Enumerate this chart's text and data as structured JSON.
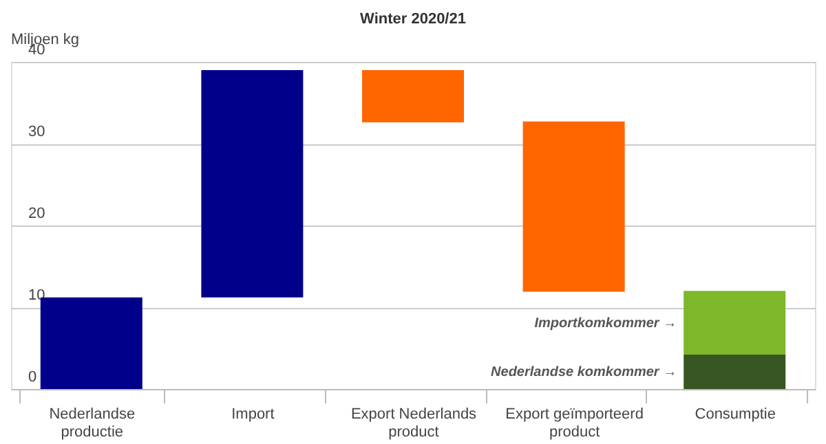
{
  "chart_data": {
    "type": "bar",
    "title": "Winter 2020/21",
    "ylabel": "Miljoen kg",
    "categories": [
      "Nederlandse productie",
      "Import",
      "Export Nederlands product",
      "Export geïmporteerd product",
      "Consumptie"
    ],
    "series": [
      {
        "colors": [
          "#00008b",
          "#00008b",
          "#ff6600",
          "#ff6600",
          "#375623"
        ],
        "values": [
          11.2,
          27.8,
          6.4,
          20.8,
          4.2
        ],
        "base": [
          0,
          11.2,
          32.6,
          11.9,
          0
        ]
      },
      {
        "color": "#7db72a",
        "values": [
          null,
          null,
          null,
          null,
          7.8
        ],
        "base": [
          null,
          null,
          null,
          null,
          4.2
        ]
      }
    ],
    "annotations": [
      "Importkomkommer →",
      "Nederlandse komkommer →"
    ],
    "ylim": [
      0,
      40
    ],
    "yticks": [
      0,
      10,
      20,
      30,
      40
    ],
    "grid": "y"
  }
}
